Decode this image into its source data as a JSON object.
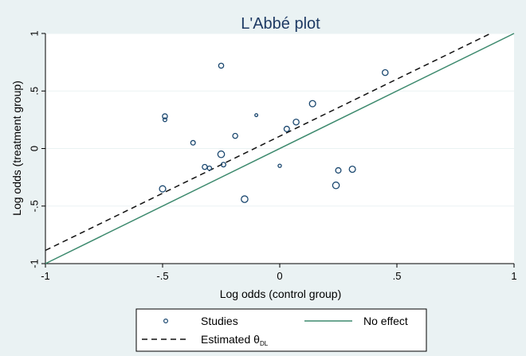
{
  "chart_data": {
    "type": "scatter",
    "title": "L'Abbé plot",
    "xlabel": "Log odds (control group)",
    "ylabel": "Log odds (treatment group)",
    "xlim": [
      -1,
      1
    ],
    "ylim": [
      -1,
      1
    ],
    "xticks": [
      {
        "value": -1,
        "label": "-1"
      },
      {
        "value": -0.5,
        "label": "-.5"
      },
      {
        "value": 0,
        "label": "0"
      },
      {
        "value": 0.5,
        "label": ".5"
      },
      {
        "value": 1,
        "label": "1"
      }
    ],
    "yticks": [
      {
        "value": -1,
        "label": "-1"
      },
      {
        "value": -0.5,
        "label": "-.5"
      },
      {
        "value": 0,
        "label": "0"
      },
      {
        "value": 0.5,
        "label": ".5"
      },
      {
        "value": 1,
        "label": "1"
      }
    ],
    "grid": true,
    "legend_position": "bottom",
    "series": [
      {
        "name": "Studies",
        "kind": "points",
        "color": "#1a476f",
        "points": [
          {
            "x": -0.25,
            "y": 0.72,
            "weight": 1.2
          },
          {
            "x": 0.45,
            "y": 0.66,
            "weight": 1.4
          },
          {
            "x": -0.49,
            "y": 0.28,
            "weight": 1.2
          },
          {
            "x": -0.49,
            "y": 0.25,
            "weight": 0.9
          },
          {
            "x": -0.1,
            "y": 0.29,
            "weight": 0.7
          },
          {
            "x": 0.14,
            "y": 0.39,
            "weight": 1.5
          },
          {
            "x": -0.19,
            "y": 0.11,
            "weight": 1.2
          },
          {
            "x": 0.07,
            "y": 0.23,
            "weight": 1.4
          },
          {
            "x": 0.03,
            "y": 0.17,
            "weight": 1.3
          },
          {
            "x": -0.37,
            "y": 0.05,
            "weight": 1.1
          },
          {
            "x": -0.25,
            "y": -0.05,
            "weight": 1.6
          },
          {
            "x": -0.32,
            "y": -0.16,
            "weight": 1.2
          },
          {
            "x": -0.3,
            "y": -0.17,
            "weight": 1.0
          },
          {
            "x": -0.24,
            "y": -0.14,
            "weight": 1.1
          },
          {
            "x": 0.0,
            "y": -0.15,
            "weight": 0.8
          },
          {
            "x": 0.25,
            "y": -0.19,
            "weight": 1.3
          },
          {
            "x": 0.31,
            "y": -0.18,
            "weight": 1.5
          },
          {
            "x": 0.24,
            "y": -0.32,
            "weight": 1.6
          },
          {
            "x": -0.5,
            "y": -0.35,
            "weight": 1.5
          },
          {
            "x": -0.15,
            "y": -0.44,
            "weight": 1.6
          }
        ]
      },
      {
        "name": "No effect",
        "kind": "line",
        "color": "#3d8a6e",
        "dash": "solid",
        "segment": [
          [
            -1,
            -1
          ],
          [
            1,
            1
          ]
        ]
      },
      {
        "name": "Estimated θDL",
        "name_main": "Estimated θ",
        "name_sub": "DL",
        "kind": "line",
        "color": "#111111",
        "dash": "dashed",
        "segment": [
          [
            -1,
            -0.885
          ],
          [
            0.9,
            1.0
          ]
        ]
      }
    ]
  }
}
